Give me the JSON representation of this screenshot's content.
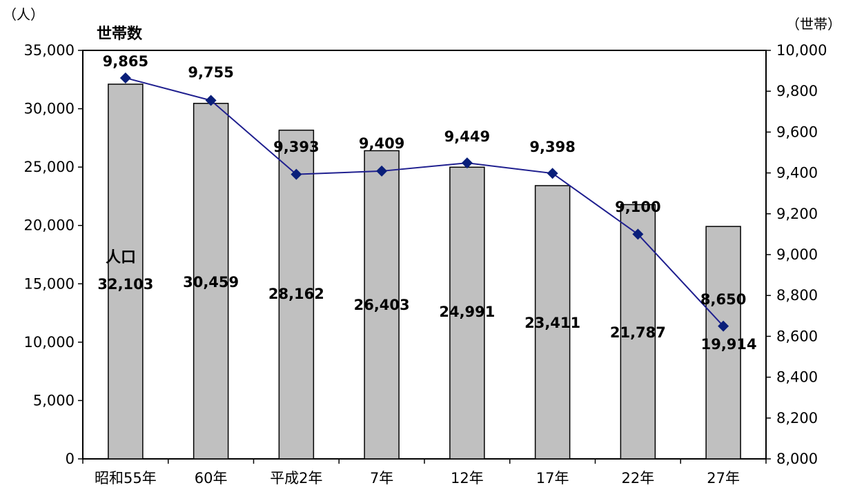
{
  "chart_data": {
    "type": "bar+line",
    "categories": [
      "昭和55年",
      "60年",
      "平成2年",
      "7年",
      "12年",
      "17年",
      "22年",
      "27年"
    ],
    "series": [
      {
        "name": "人口",
        "type": "bar",
        "axis": "left",
        "values": [
          32103,
          30459,
          28162,
          26403,
          24991,
          23411,
          21787,
          19914
        ],
        "labels": [
          "32,103",
          "30,459",
          "28,162",
          "26,403",
          "24,991",
          "23,411",
          "21,787",
          "19,914"
        ],
        "color": "#c0c0c0"
      },
      {
        "name": "世帯数",
        "type": "line",
        "axis": "right",
        "values": [
          9865,
          9755,
          9393,
          9409,
          9449,
          9398,
          9100,
          8650
        ],
        "labels": [
          "9,865",
          "9,755",
          "9,393",
          "9,409",
          "9,449",
          "9,398",
          "9,100",
          "8,650"
        ],
        "color": "#1f1f8f"
      }
    ],
    "left_axis": {
      "unit_label": "（人）",
      "ylim": [
        0,
        35000
      ],
      "ticks": [
        0,
        5000,
        10000,
        15000,
        20000,
        25000,
        30000,
        35000
      ],
      "tick_labels": [
        "0",
        "5,000",
        "10,000",
        "15,000",
        "20,000",
        "25,000",
        "30,000",
        "35,000"
      ]
    },
    "right_axis": {
      "unit_label": "（世帯）",
      "ylim": [
        8000,
        10000
      ],
      "ticks": [
        8000,
        8200,
        8400,
        8600,
        8800,
        9000,
        9200,
        9400,
        9600,
        9800,
        10000
      ],
      "tick_labels": [
        "8,000",
        "8,200",
        "8,400",
        "8,600",
        "8,800",
        "9,000",
        "9,200",
        "9,400",
        "9,600",
        "9,800",
        "10,000"
      ]
    },
    "grid": false,
    "legend": "none"
  }
}
